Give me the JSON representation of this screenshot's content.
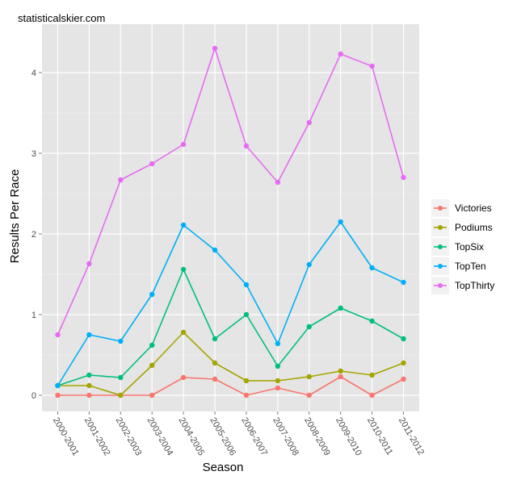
{
  "chart_data": {
    "type": "line",
    "watermark": "statisticalskier.com",
    "xlabel": "Season",
    "ylabel": "Results Per Race",
    "categories": [
      "2000-2001",
      "2001-2002",
      "2002-2003",
      "2003-2004",
      "2004-2005",
      "2005-2006",
      "2006-2007",
      "2007-2008",
      "2008-2009",
      "2009-2010",
      "2010-2011",
      "2011-2012"
    ],
    "ylim": [
      -0.2,
      4.6
    ],
    "yticks": [
      0,
      1,
      2,
      3,
      4
    ],
    "grid": true,
    "legend_position": "right",
    "series": [
      {
        "name": "Victories",
        "color": "#F8766D",
        "values": [
          0,
          0,
          0,
          0,
          0.22,
          0.2,
          0,
          0.09,
          0,
          0.23,
          0,
          0.2
        ]
      },
      {
        "name": "Podiums",
        "color": "#A3A500",
        "values": [
          0.12,
          0.12,
          0,
          0.37,
          0.78,
          0.4,
          0.18,
          0.18,
          0.23,
          0.3,
          0.25,
          0.4
        ]
      },
      {
        "name": "TopSix",
        "color": "#00BF7D",
        "values": [
          0.12,
          0.25,
          0.22,
          0.62,
          1.56,
          0.7,
          1.0,
          0.36,
          0.85,
          1.08,
          0.92,
          0.7
        ]
      },
      {
        "name": "TopTen",
        "color": "#00B0F6",
        "values": [
          0.12,
          0.75,
          0.67,
          1.25,
          2.11,
          1.8,
          1.37,
          0.64,
          1.62,
          2.15,
          1.58,
          1.4
        ]
      },
      {
        "name": "TopThirty",
        "color": "#E76BF3",
        "values": [
          0.75,
          1.63,
          2.67,
          2.87,
          3.11,
          4.3,
          3.09,
          2.64,
          3.38,
          4.23,
          4.08,
          2.7
        ]
      }
    ]
  }
}
